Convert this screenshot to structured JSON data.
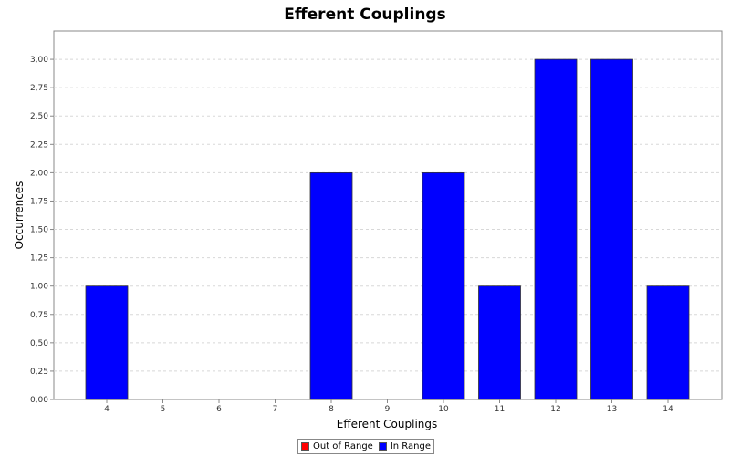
{
  "chart_data": {
    "type": "bar",
    "title": "Efferent Couplings",
    "xlabel": "Efferent Couplings",
    "ylabel": "Occurrences",
    "categories": [
      "4",
      "5",
      "6",
      "7",
      "8",
      "9",
      "10",
      "11",
      "12",
      "13",
      "14"
    ],
    "series": [
      {
        "name": "In Range",
        "values": [
          1,
          0,
          0,
          0,
          2,
          0,
          2,
          1,
          3,
          3,
          1
        ],
        "color": "#0000ff"
      }
    ],
    "legend": [
      {
        "name": "Out of Range",
        "color": "#ff0000"
      },
      {
        "name": "In Range",
        "color": "#0000ff"
      }
    ],
    "ylim": [
      0,
      3.25
    ],
    "yticks": [
      "0,00",
      "0,25",
      "0,50",
      "0,75",
      "1,00",
      "1,25",
      "1,50",
      "1,75",
      "2,00",
      "2,25",
      "2,50",
      "2,75",
      "3,00"
    ],
    "grid": true,
    "legend_position": "bottom"
  }
}
